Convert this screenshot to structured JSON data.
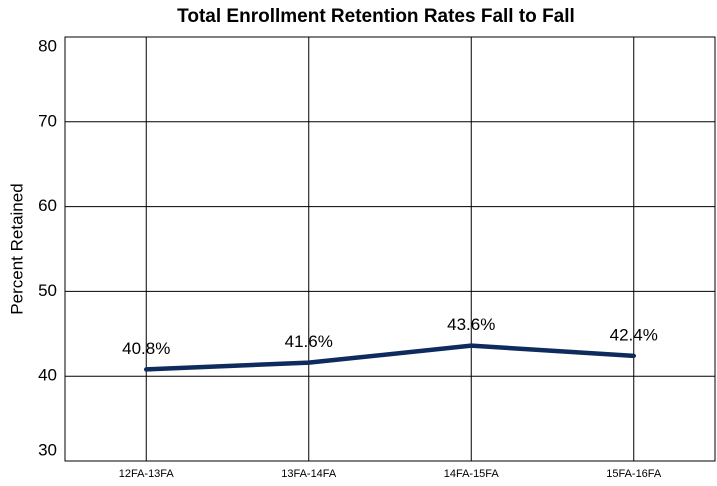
{
  "chart_data": {
    "type": "line",
    "title": "Total Enrollment Retention Rates Fall to Fall",
    "y_label": "Percent Retained",
    "categories": [
      "12FA-13FA",
      "13FA-14FA",
      "14FA-15FA",
      "15FA-16FA"
    ],
    "values": [
      40.8,
      41.6,
      43.6,
      42.4
    ],
    "value_labels": [
      "40.8%",
      "41.6%",
      "43.6%",
      "42.4%"
    ],
    "color": "#0f2b5e",
    "ylim": [
      30,
      80
    ],
    "yticks": [
      30,
      40,
      50,
      60,
      70,
      80
    ],
    "grid": true
  }
}
